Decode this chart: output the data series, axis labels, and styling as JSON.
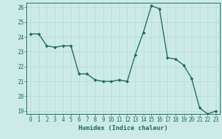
{
  "x": [
    0,
    1,
    2,
    3,
    4,
    5,
    6,
    7,
    8,
    9,
    10,
    11,
    12,
    13,
    14,
    15,
    16,
    17,
    18,
    19,
    20,
    21,
    22,
    23
  ],
  "y": [
    24.2,
    24.2,
    23.4,
    23.3,
    23.4,
    23.4,
    21.5,
    21.5,
    21.1,
    21.0,
    21.0,
    21.1,
    21.0,
    22.8,
    24.3,
    26.1,
    25.9,
    22.6,
    22.5,
    22.1,
    21.2,
    19.2,
    18.8,
    19.0
  ],
  "line_color": "#1a6b5a",
  "marker": "D",
  "marker_size": 2.0,
  "bg_color": "#cceae8",
  "grid_color": "#b8d8d5",
  "xlabel": "Humidex (Indice chaleur)",
  "ylim_min": 18.8,
  "ylim_max": 26.3,
  "xlim_min": -0.5,
  "xlim_max": 23.5,
  "yticks": [
    19,
    20,
    21,
    22,
    23,
    24,
    25,
    26
  ],
  "xticks": [
    0,
    1,
    2,
    3,
    4,
    5,
    6,
    7,
    8,
    9,
    10,
    11,
    12,
    13,
    14,
    15,
    16,
    17,
    18,
    19,
    20,
    21,
    22,
    23
  ],
  "xlabel_fontsize": 6.5,
  "tick_fontsize": 5.5,
  "line_width": 1.0
}
